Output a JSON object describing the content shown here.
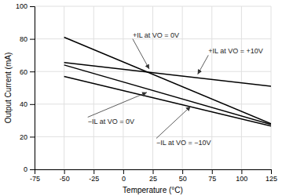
{
  "chart_data": {
    "type": "line",
    "xlabel": "Temperature (°C)",
    "ylabel": "Output Current (mA)",
    "xlim": [
      -75,
      125
    ],
    "ylim": [
      0,
      100
    ],
    "xticks": [
      -75,
      -50,
      -25,
      0,
      25,
      50,
      75,
      100,
      125
    ],
    "yticks": [
      0,
      20,
      40,
      60,
      80,
      100
    ],
    "grid": true,
    "color": "#000000",
    "series": [
      {
        "x": [
          -50,
          125
        ],
        "values": [
          81,
          28
        ]
      },
      {
        "x": [
          -50,
          125
        ],
        "values": [
          65.5,
          51
        ]
      },
      {
        "x": [
          -50,
          125
        ],
        "values": [
          64,
          27.5
        ]
      },
      {
        "x": [
          -50,
          125
        ],
        "values": [
          57,
          26.5
        ]
      }
    ],
    "annotations": [
      {
        "text": "+IL at VO = 0V",
        "x": 22,
        "y": 61.5,
        "text_x": 8,
        "text_y": 80
      },
      {
        "text": "+IL at VO = +10V",
        "x": 63,
        "y": 58.3,
        "text_x": 72,
        "text_y": 70
      },
      {
        "text": "−IL at VO = 0V",
        "x": 20,
        "y": 47.2,
        "text_x": -30,
        "text_y": 32
      },
      {
        "text": "−IL at VO = −10V",
        "x": 57,
        "y": 38.6,
        "text_x": 28,
        "text_y": 19
      }
    ]
  }
}
